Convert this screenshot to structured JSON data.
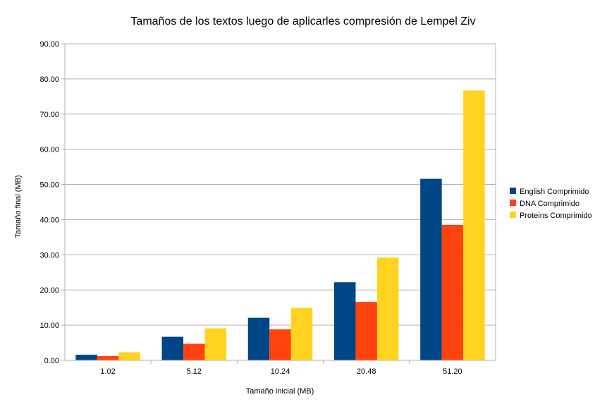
{
  "chart_data": {
    "type": "bar",
    "title": "Tamaños de los textos luego de aplicarles compresión de Lempel Ziv",
    "xlabel": "Tamaño inicial (MB)",
    "ylabel": "Tamaño final (MB)",
    "categories": [
      "1.02",
      "5.12",
      "10.24",
      "20.48",
      "51.20"
    ],
    "ylim": [
      0,
      90
    ],
    "yticks": [
      "0.00",
      "10.00",
      "20.00",
      "30.00",
      "40.00",
      "50.00",
      "60.00",
      "70.00",
      "80.00",
      "90.00"
    ],
    "grid": true,
    "legend_position": "right",
    "series": [
      {
        "name": "English Comprimido",
        "color": "#004586",
        "values": [
          1.6,
          6.7,
          12.1,
          22.2,
          51.6
        ]
      },
      {
        "name": "DNA Comprimido",
        "color": "#ff420e",
        "values": [
          1.2,
          4.7,
          8.8,
          16.6,
          38.5
        ]
      },
      {
        "name": "Proteins Comprimido",
        "color": "#ffd320",
        "values": [
          2.3,
          9.1,
          14.9,
          29.2,
          76.7
        ]
      }
    ]
  }
}
